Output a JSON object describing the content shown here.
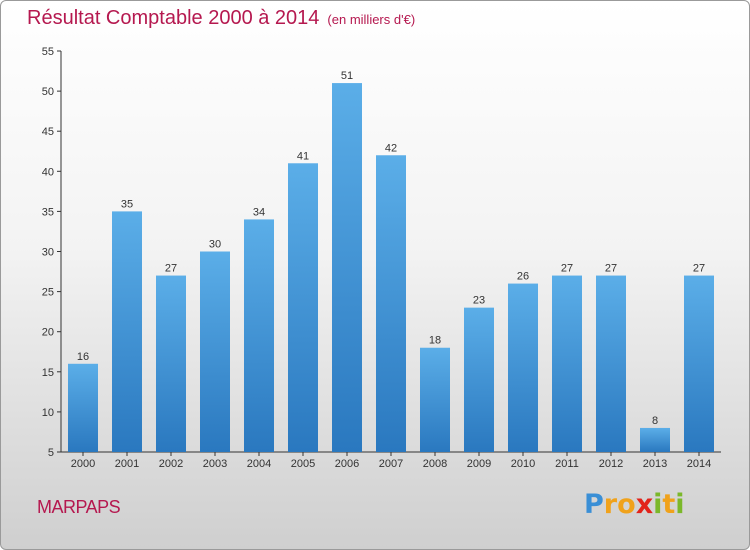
{
  "title": "Résultat Comptable 2000 à 2014",
  "title_unit": "(en milliers d'€)",
  "commune": "MARPAPS",
  "logo": {
    "text": "Proxiti"
  },
  "colors": {
    "title": "#b5184f",
    "bar_light": "#5baee8",
    "bar_dark": "#2a78bf"
  },
  "chart_data": {
    "type": "bar",
    "title": "Résultat Comptable 2000 à 2014",
    "categories": [
      "2000",
      "2001",
      "2002",
      "2003",
      "2004",
      "2005",
      "2006",
      "2007",
      "2008",
      "2009",
      "2010",
      "2011",
      "2012",
      "2013",
      "2014"
    ],
    "values": [
      16,
      35,
      27,
      30,
      34,
      41,
      51,
      42,
      18,
      23,
      26,
      27,
      27,
      8,
      27
    ],
    "ylim": [
      5,
      55
    ],
    "yticks": [
      5,
      10,
      15,
      20,
      25,
      30,
      35,
      40,
      45,
      50,
      55
    ],
    "grid": false,
    "legend": "none"
  }
}
